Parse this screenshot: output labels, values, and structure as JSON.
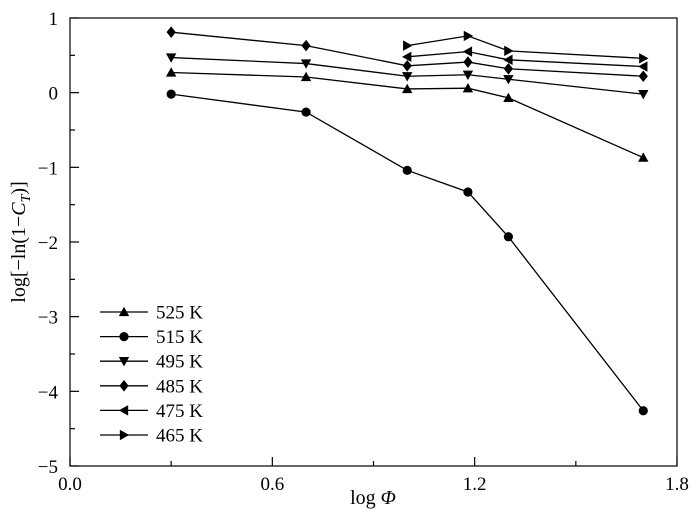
{
  "chart_data": {
    "type": "line",
    "xlabel_prefix": "log ",
    "xlabel_symbol": "Φ",
    "ylabel_prefix": "log[−ln(1−",
    "ylabel_symbol": "C",
    "ylabel_sub": "T",
    "ylabel_suffix": ")]",
    "xlim": [
      0.0,
      1.8
    ],
    "ylim": [
      -5,
      1
    ],
    "xticks": [
      0.0,
      0.6,
      1.2,
      1.8
    ],
    "xtick_labels": [
      "0.0",
      "0.6",
      "1.2",
      "1.8"
    ],
    "xminor": [
      0.3,
      0.9,
      1.5
    ],
    "yticks": [
      1,
      0,
      -1,
      -2,
      -3,
      -4,
      -5
    ],
    "ytick_labels": [
      "1",
      "0",
      "−1",
      "−2",
      "−3",
      "−4",
      "−5"
    ],
    "yminor": [
      0.5,
      -0.5,
      -1.5,
      -2.5,
      -3.5,
      -4.5
    ],
    "grid": false,
    "legend_position": "bottom-left",
    "series": [
      {
        "name": "525 K",
        "marker": "triangle-up",
        "x": [
          0.3,
          0.7,
          1.0,
          1.18,
          1.3,
          1.7
        ],
        "y": [
          0.27,
          0.21,
          0.05,
          0.06,
          -0.07,
          -0.87
        ]
      },
      {
        "name": "515 K",
        "marker": "circle",
        "x": [
          0.3,
          0.7,
          1.0,
          1.18,
          1.3,
          1.7
        ],
        "y": [
          -0.02,
          -0.26,
          -1.04,
          -1.33,
          -1.93,
          -4.26
        ]
      },
      {
        "name": "495 K",
        "marker": "triangle-down",
        "x": [
          0.3,
          0.7,
          1.0,
          1.18,
          1.3,
          1.7
        ],
        "y": [
          0.47,
          0.39,
          0.22,
          0.24,
          0.18,
          -0.02
        ]
      },
      {
        "name": "485 K",
        "marker": "diamond",
        "x": [
          0.3,
          0.7,
          1.0,
          1.18,
          1.3,
          1.7
        ],
        "y": [
          0.81,
          0.63,
          0.36,
          0.41,
          0.32,
          0.22
        ]
      },
      {
        "name": "475 K",
        "marker": "triangle-left",
        "x": [
          1.0,
          1.18,
          1.3,
          1.7
        ],
        "y": [
          0.48,
          0.55,
          0.44,
          0.35
        ]
      },
      {
        "name": "465 K",
        "marker": "triangle-right",
        "x": [
          1.0,
          1.18,
          1.3,
          1.7
        ],
        "y": [
          0.63,
          0.76,
          0.56,
          0.46
        ]
      }
    ]
  }
}
